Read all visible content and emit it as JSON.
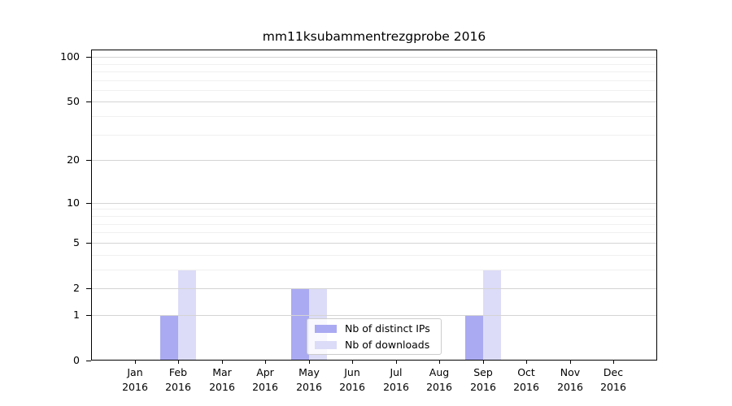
{
  "chart_data": {
    "type": "bar",
    "title": "mm11ksubammentrezgprobe 2016",
    "categories": [
      "Jan",
      "Feb",
      "Mar",
      "Apr",
      "May",
      "Jun",
      "Jul",
      "Aug",
      "Sep",
      "Oct",
      "Nov",
      "Dec"
    ],
    "category_year": "2016",
    "series": [
      {
        "name": "Nb of distinct IPs",
        "key": "distinct-ips",
        "color": "#aaaaf2",
        "values": [
          0,
          1,
          0,
          0,
          2,
          0,
          0,
          0,
          1,
          0,
          0,
          0
        ]
      },
      {
        "name": "Nb of downloads",
        "key": "downloads",
        "color": "#dcdcf8",
        "values": [
          0,
          3,
          0,
          0,
          2,
          0,
          0,
          0,
          3,
          0,
          0,
          0
        ]
      }
    ],
    "yscale": "log1p",
    "ylim": [
      0,
      112
    ],
    "yticks": [
      0,
      1,
      2,
      5,
      10,
      20,
      50,
      100
    ],
    "minor_gridlines": [
      3,
      4,
      6,
      7,
      8,
      9,
      30,
      40,
      60,
      70,
      80,
      90
    ],
    "grid": "horizontal",
    "legend_position": "lower center"
  },
  "colors": {
    "grid_major": "#d4d4d4",
    "grid_minor": "#f0f0f0",
    "axis": "#000000",
    "text": "#000000",
    "legend_border": "#cccccc",
    "legend_background": "rgba(255,255,255,0.8)"
  }
}
